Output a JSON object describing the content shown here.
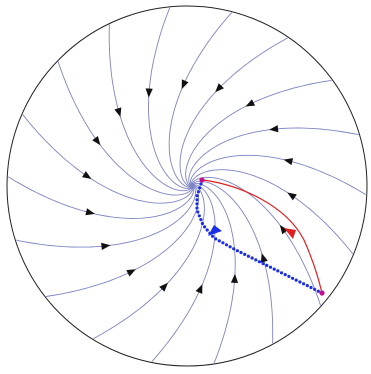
{
  "diagram": {
    "type": "phase-portrait",
    "colors": {
      "boundary": "#222222",
      "flow_lines": "#7e84c4",
      "arrows": "#111111",
      "forward_path": "#e02020",
      "backward_path": "#1a2ee6",
      "endpoint": "#c01090"
    }
  }
}
